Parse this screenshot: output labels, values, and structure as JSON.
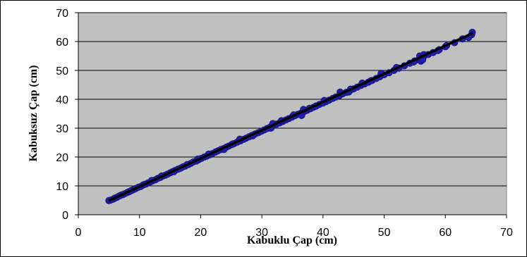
{
  "chart_data": {
    "type": "scatter",
    "xlabel": "Kabuklu Çap (cm)",
    "ylabel": "Kabuksuz Çap (cm)",
    "xlim": [
      0,
      70
    ],
    "ylim": [
      0,
      70
    ],
    "xticks": [
      0,
      10,
      20,
      30,
      40,
      50,
      60,
      70
    ],
    "yticks": [
      0,
      10,
      20,
      30,
      40,
      50,
      60,
      70
    ],
    "grid": "horizontal",
    "legend": "none",
    "plot_background": "#c0c0c0",
    "marker_color": "#1f1fa8",
    "line_color": "#000000",
    "series": [
      {
        "points": [
          [
            5.0,
            4.9
          ],
          [
            5.3,
            5.1
          ],
          [
            5.7,
            5.4
          ],
          [
            6.0,
            5.8
          ],
          [
            6.3,
            6.0
          ],
          [
            6.6,
            6.4
          ],
          [
            7.0,
            6.8
          ],
          [
            7.3,
            7.0
          ],
          [
            7.6,
            7.3
          ],
          [
            8.0,
            7.7
          ],
          [
            8.3,
            8.0
          ],
          [
            8.7,
            8.4
          ],
          [
            9.0,
            8.7
          ],
          [
            9.4,
            9.1
          ],
          [
            9.8,
            9.5
          ],
          [
            10.2,
            9.8
          ],
          [
            10.6,
            10.3
          ],
          [
            11.0,
            10.6
          ],
          [
            11.4,
            11.0
          ],
          [
            11.8,
            11.4
          ],
          [
            12.2,
            11.8
          ],
          [
            12.6,
            12.1
          ],
          [
            13.0,
            12.6
          ],
          [
            13.4,
            12.9
          ],
          [
            13.8,
            13.4
          ],
          [
            14.2,
            13.7
          ],
          [
            14.6,
            14.1
          ],
          [
            15.0,
            14.5
          ],
          [
            15.4,
            14.9
          ],
          [
            15.8,
            15.3
          ],
          [
            16.3,
            15.8
          ],
          [
            16.7,
            16.1
          ],
          [
            17.1,
            16.6
          ],
          [
            17.5,
            16.9
          ],
          [
            18.0,
            17.4
          ],
          [
            18.4,
            17.8
          ],
          [
            18.8,
            18.3
          ],
          [
            19.3,
            18.6
          ],
          [
            19.7,
            19.1
          ],
          [
            20.1,
            19.5
          ],
          [
            20.6,
            20.0
          ],
          [
            21.0,
            20.3
          ],
          [
            21.5,
            20.8
          ],
          [
            21.9,
            21.2
          ],
          [
            22.4,
            21.7
          ],
          [
            22.8,
            22.1
          ],
          [
            23.3,
            22.6
          ],
          [
            23.7,
            22.9
          ],
          [
            24.2,
            23.4
          ],
          [
            24.6,
            23.8
          ],
          [
            25.1,
            24.3
          ],
          [
            25.5,
            24.7
          ],
          [
            26.0,
            25.2
          ],
          [
            26.5,
            25.6
          ],
          [
            27.0,
            26.1
          ],
          [
            27.4,
            26.5
          ],
          [
            27.9,
            27.0
          ],
          [
            28.4,
            27.5
          ],
          [
            28.9,
            28.0
          ],
          [
            29.4,
            28.4
          ],
          [
            29.9,
            28.9
          ],
          [
            30.4,
            29.4
          ],
          [
            30.9,
            29.9
          ],
          [
            31.4,
            30.4
          ],
          [
            31.9,
            30.9
          ],
          [
            32.4,
            31.4
          ],
          [
            32.9,
            31.8
          ],
          [
            33.4,
            32.3
          ],
          [
            33.9,
            32.8
          ],
          [
            34.4,
            33.3
          ],
          [
            34.9,
            33.8
          ],
          [
            35.4,
            34.3
          ],
          [
            35.9,
            34.8
          ],
          [
            36.4,
            35.2
          ],
          [
            36.9,
            35.7
          ],
          [
            37.4,
            36.2
          ],
          [
            37.9,
            36.7
          ],
          [
            38.4,
            37.2
          ],
          [
            38.9,
            37.7
          ],
          [
            39.4,
            38.2
          ],
          [
            40.0,
            38.7
          ],
          [
            40.5,
            39.2
          ],
          [
            41.0,
            39.7
          ],
          [
            41.6,
            40.3
          ],
          [
            42.1,
            40.8
          ],
          [
            42.7,
            41.3
          ],
          [
            43.2,
            41.9
          ],
          [
            43.8,
            42.4
          ],
          [
            44.4,
            43.0
          ],
          [
            45.0,
            43.6
          ],
          [
            45.6,
            44.2
          ],
          [
            46.2,
            44.8
          ],
          [
            46.8,
            45.3
          ],
          [
            47.4,
            45.9
          ],
          [
            48.0,
            46.5
          ],
          [
            48.7,
            47.2
          ],
          [
            49.3,
            47.8
          ],
          [
            50.0,
            48.5
          ],
          [
            50.8,
            49.2
          ],
          [
            51.6,
            50.0
          ],
          [
            52.4,
            50.8
          ],
          [
            53.3,
            51.6
          ],
          [
            54.2,
            52.5
          ],
          [
            55.0,
            53.3
          ],
          [
            55.8,
            54.1
          ],
          [
            56.4,
            54.6
          ],
          [
            57.2,
            55.5
          ],
          [
            58.0,
            56.2
          ],
          [
            59.0,
            57.2
          ],
          [
            60.0,
            58.2
          ],
          [
            61.5,
            59.6
          ],
          [
            62.8,
            60.9
          ],
          [
            64.3,
            62.4
          ],
          [
            36.5,
            34.4
          ],
          [
            36.8,
            36.5
          ],
          [
            42.8,
            42.5
          ],
          [
            44.2,
            42.5
          ],
          [
            44.5,
            43.5
          ],
          [
            55.8,
            55.0
          ],
          [
            56.0,
            53.2
          ],
          [
            56.3,
            53.7
          ],
          [
            56.5,
            55.5
          ],
          [
            49.5,
            49.0
          ],
          [
            31.5,
            30.0
          ],
          [
            31.8,
            31.6
          ],
          [
            28.5,
            27.3
          ],
          [
            26.4,
            26.2
          ],
          [
            23.8,
            22.6
          ],
          [
            21.3,
            21.0
          ],
          [
            17.8,
            17.4
          ],
          [
            15.6,
            14.9
          ],
          [
            13.6,
            13.4
          ],
          [
            10.8,
            10.5
          ],
          [
            8.6,
            8.3
          ],
          [
            6.8,
            6.6
          ],
          [
            38.8,
            37.6
          ],
          [
            40.2,
            39.6
          ],
          [
            46.4,
            45.6
          ],
          [
            47.8,
            46.4
          ],
          [
            52.0,
            51.0
          ],
          [
            54.8,
            52.9
          ],
          [
            58.8,
            56.9
          ],
          [
            60.2,
            58.6
          ],
          [
            63.8,
            61.4
          ],
          [
            64.4,
            63.2
          ],
          [
            5.2,
            5.0
          ],
          [
            12.0,
            11.9
          ],
          [
            19.5,
            19.3
          ],
          [
            25.2,
            24.5
          ],
          [
            33.2,
            32.6
          ],
          [
            35.2,
            34.6
          ],
          [
            37.8,
            36.9
          ],
          [
            43.1,
            42.0
          ]
        ]
      }
    ],
    "trendline": {
      "from": [
        5.0,
        4.85
      ],
      "to": [
        64.5,
        62.95
      ]
    }
  }
}
